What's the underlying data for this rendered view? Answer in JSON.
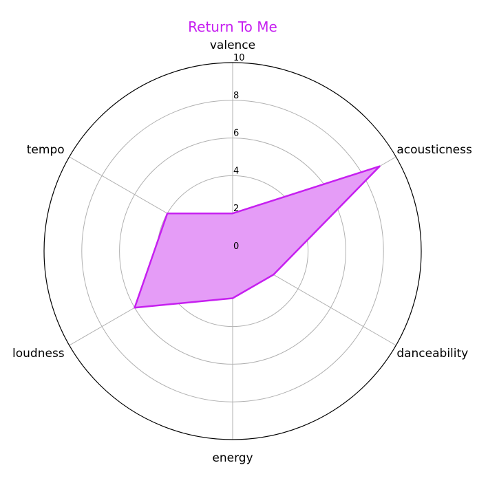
{
  "chart_data": {
    "type": "radar",
    "title": "Return To Me",
    "axes": [
      "valence",
      "acousticness",
      "danceability",
      "energy",
      "loudness",
      "tempo"
    ],
    "values": [
      2,
      9,
      2.5,
      2.5,
      6,
      4
    ],
    "rlim": [
      0,
      10
    ],
    "rticks": [
      "0",
      "2",
      "4",
      "6",
      "8",
      "10"
    ],
    "grid": true,
    "colors": {
      "accent": "#c61ff0",
      "fill": "#e59cf7",
      "grid": "#b0b0b0",
      "frame": "#000000"
    }
  }
}
